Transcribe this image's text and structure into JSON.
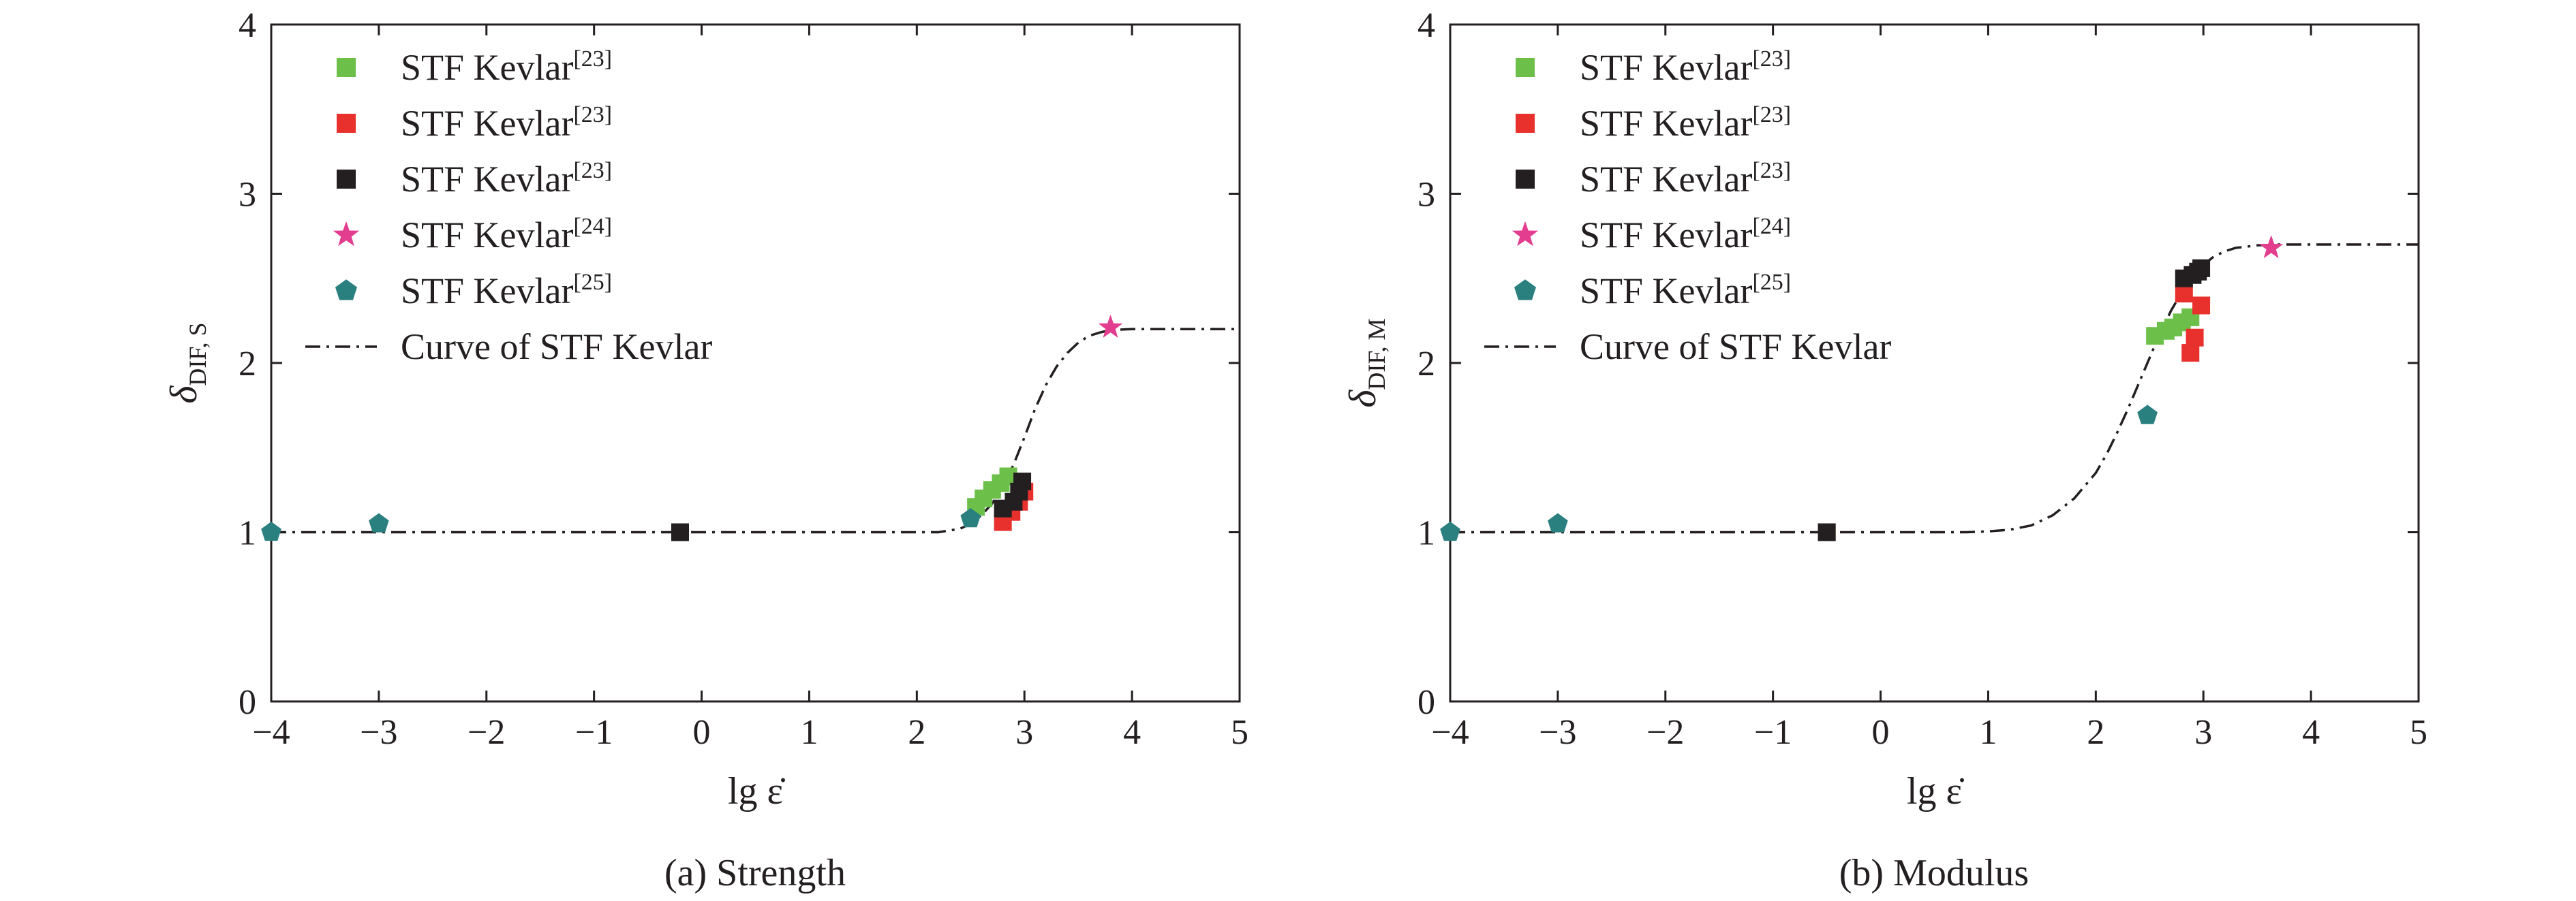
{
  "chart_data": [
    {
      "type": "scatter",
      "caption": "(a) Strength",
      "xlabel": "lg ε̇",
      "ylabel_main": "δ",
      "ylabel_sub": "DIF, S",
      "xlim": [
        -4,
        5
      ],
      "ylim": [
        0,
        4
      ],
      "xticks": [
        -4,
        -3,
        -2,
        -1,
        0,
        1,
        2,
        3,
        4,
        5
      ],
      "yticks": [
        0,
        1,
        2,
        3,
        4
      ],
      "xtick_labels": [
        "−4",
        "−3",
        "−2",
        "−1",
        "0",
        "1",
        "2",
        "3",
        "4",
        "5"
      ],
      "ytick_labels": [
        "0",
        "1",
        "2",
        "3",
        "4"
      ],
      "legend_position": "top-left",
      "grid": false,
      "series": [
        {
          "label": "STF Kevlar",
          "ref": "[23]",
          "marker": "square",
          "color": "#6cc04a",
          "points": [
            [
              -0.2,
              1.0
            ],
            [
              2.55,
              1.15
            ],
            [
              2.62,
              1.2
            ],
            [
              2.7,
              1.25
            ],
            [
              2.78,
              1.29
            ],
            [
              2.85,
              1.33
            ]
          ]
        },
        {
          "label": "STF Kevlar",
          "ref": "[23]",
          "marker": "square",
          "color": "#e8302d",
          "points": [
            [
              -0.2,
              1.0
            ],
            [
              2.8,
              1.06
            ],
            [
              2.88,
              1.12
            ],
            [
              2.95,
              1.18
            ],
            [
              3.0,
              1.24
            ]
          ]
        },
        {
          "label": "STF Kevlar",
          "ref": "[23]",
          "marker": "square",
          "color": "#231f20",
          "points": [
            [
              -0.2,
              1.0
            ],
            [
              2.8,
              1.14
            ],
            [
              2.9,
              1.18
            ],
            [
              2.95,
              1.24
            ],
            [
              2.98,
              1.3
            ]
          ]
        },
        {
          "label": "STF Kevlar",
          "ref": "[24]",
          "marker": "star",
          "color": "#e23d8e",
          "points": [
            [
              3.8,
              2.21
            ]
          ]
        },
        {
          "label": "STF Kevlar",
          "ref": "[25]",
          "marker": "pentagon",
          "color": "#2a7f7f",
          "points": [
            [
              -4.0,
              1.0
            ],
            [
              -3.0,
              1.05
            ],
            [
              2.5,
              1.08
            ]
          ]
        }
      ],
      "curve": {
        "label": "Curve of STF Kevlar",
        "style": "dash-dot",
        "color": "#231f20",
        "points": [
          [
            -4,
            1.0
          ],
          [
            2.0,
            1.0
          ],
          [
            2.2,
            1.0
          ],
          [
            2.4,
            1.02
          ],
          [
            2.5,
            1.05
          ],
          [
            2.6,
            1.1
          ],
          [
            2.7,
            1.17
          ],
          [
            2.8,
            1.27
          ],
          [
            2.9,
            1.4
          ],
          [
            3.0,
            1.56
          ],
          [
            3.1,
            1.73
          ],
          [
            3.2,
            1.87
          ],
          [
            3.3,
            1.98
          ],
          [
            3.4,
            2.06
          ],
          [
            3.5,
            2.12
          ],
          [
            3.6,
            2.16
          ],
          [
            3.7,
            2.18
          ],
          [
            3.8,
            2.195
          ],
          [
            4.0,
            2.2
          ],
          [
            5.0,
            2.2
          ]
        ]
      }
    },
    {
      "type": "scatter",
      "caption": "(b) Modulus",
      "xlabel": "lg ε̇",
      "ylabel_main": "δ",
      "ylabel_sub": "DIF, M",
      "xlim": [
        -4,
        5
      ],
      "ylim": [
        0,
        4
      ],
      "xticks": [
        -4,
        -3,
        -2,
        -1,
        0,
        1,
        2,
        3,
        4,
        5
      ],
      "yticks": [
        0,
        1,
        2,
        3,
        4
      ],
      "xtick_labels": [
        "−4",
        "−3",
        "−2",
        "−1",
        "0",
        "1",
        "2",
        "3",
        "4",
        "5"
      ],
      "ytick_labels": [
        "0",
        "1",
        "2",
        "3",
        "4"
      ],
      "legend_position": "top-left",
      "grid": false,
      "series": [
        {
          "label": "STF Kevlar",
          "ref": "[23]",
          "marker": "square",
          "color": "#6cc04a",
          "points": [
            [
              -0.5,
              1.0
            ],
            [
              2.55,
              2.16
            ],
            [
              2.65,
              2.19
            ],
            [
              2.72,
              2.21
            ],
            [
              2.8,
              2.24
            ],
            [
              2.88,
              2.27
            ]
          ]
        },
        {
          "label": "STF Kevlar",
          "ref": "[23]",
          "marker": "square",
          "color": "#e8302d",
          "points": [
            [
              -0.5,
              1.0
            ],
            [
              2.82,
              2.41
            ],
            [
              2.88,
              2.06
            ],
            [
              2.92,
              2.15
            ],
            [
              2.98,
              2.34
            ]
          ]
        },
        {
          "label": "STF Kevlar",
          "ref": "[23]",
          "marker": "square",
          "color": "#231f20",
          "points": [
            [
              -0.5,
              1.0
            ],
            [
              2.82,
              2.5
            ],
            [
              2.9,
              2.52
            ],
            [
              2.95,
              2.54
            ],
            [
              2.98,
              2.56
            ]
          ]
        },
        {
          "label": "STF Kevlar",
          "ref": "[24]",
          "marker": "star",
          "color": "#e23d8e",
          "points": [
            [
              3.63,
              2.68
            ]
          ]
        },
        {
          "label": "STF Kevlar",
          "ref": "[25]",
          "marker": "pentagon",
          "color": "#2a7f7f",
          "points": [
            [
              -4.0,
              1.0
            ],
            [
              -3.0,
              1.05
            ],
            [
              2.48,
              1.69
            ]
          ]
        }
      ],
      "curve": {
        "label": "Curve of STF Kevlar",
        "style": "dash-dot",
        "color": "#231f20",
        "points": [
          [
            -4,
            1.0
          ],
          [
            0.8,
            1.0
          ],
          [
            1.0,
            1.005
          ],
          [
            1.2,
            1.015
          ],
          [
            1.4,
            1.04
          ],
          [
            1.6,
            1.1
          ],
          [
            1.8,
            1.2
          ],
          [
            2.0,
            1.35
          ],
          [
            2.1,
            1.46
          ],
          [
            2.2,
            1.59
          ],
          [
            2.3,
            1.73
          ],
          [
            2.4,
            1.88
          ],
          [
            2.5,
            2.03
          ],
          [
            2.6,
            2.18
          ],
          [
            2.7,
            2.31
          ],
          [
            2.8,
            2.42
          ],
          [
            2.9,
            2.52
          ],
          [
            3.0,
            2.58
          ],
          [
            3.1,
            2.63
          ],
          [
            3.2,
            2.66
          ],
          [
            3.3,
            2.68
          ],
          [
            3.5,
            2.695
          ],
          [
            3.7,
            2.7
          ],
          [
            5.0,
            2.7
          ]
        ]
      }
    }
  ]
}
